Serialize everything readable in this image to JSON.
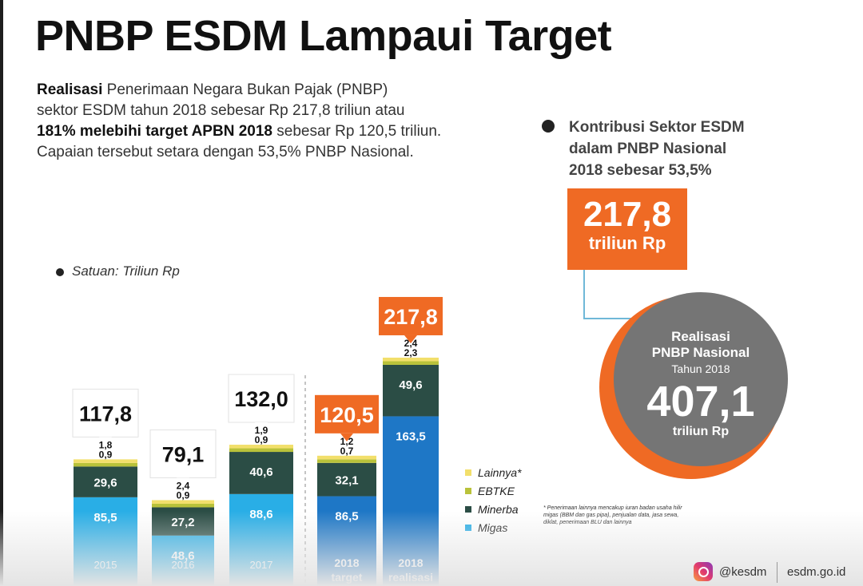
{
  "title": "PNBP ESDM Lampaui Target",
  "intro": {
    "line1_bold": "Realisasi",
    "line1_rest": " Penerimaan Negara Bukan Pajak (PNBP)",
    "line2": "sektor ESDM tahun 2018 sebesar Rp 217,8 triliun atau",
    "line3_bold": "181% melebihi target APBN 2018",
    "line3_rest": " sebesar Rp 120,5 triliun.",
    "line4": "Capaian tersebut setara dengan 53,5% PNBP Nasional."
  },
  "unit_note": "Satuan: Triliun Rp",
  "contribution": {
    "line1": "Kontribusi Sektor ESDM",
    "line2": "dalam PNBP Nasional",
    "line3": "2018 sebesar 53,5%",
    "value": "217,8",
    "unit": "triliun Rp"
  },
  "national": {
    "line1": "Realisasi",
    "line2": "PNBP Nasional",
    "line3": "Tahun 2018",
    "value": "407,1",
    "unit": "triliun Rp"
  },
  "footnote": "Penerimaan lainnya mencakup iuran badan usaha hilir migas (BBM dan gas pipa), penjualan data, jasa sewa, diklat, penerimaan BLU dan lainnya",
  "footer": {
    "handle": "@kesdm",
    "site": "esdm.go.id"
  },
  "colors": {
    "migas": "#29aee6",
    "minerba": "#2b4d45",
    "ebtke": "#b9c23a",
    "lainnya": "#f2df6b",
    "accent": "#ef6a24",
    "target_blue": "#1e77c6",
    "circle_gray": "#757575"
  },
  "chart_data": {
    "type": "bar",
    "stacked": true,
    "unit": "Triliun Rp",
    "categories": [
      "2015",
      "2016",
      "2017",
      "2018 target",
      "2018 realisasi"
    ],
    "category_labels": [
      [
        "2015"
      ],
      [
        "2016"
      ],
      [
        "2017"
      ],
      [
        "2018",
        "target"
      ],
      [
        "2018",
        "realisasi"
      ]
    ],
    "series": [
      {
        "name": "Migas",
        "values": [
          85.5,
          48.6,
          88.6,
          86.5,
          163.5
        ]
      },
      {
        "name": "Minerba",
        "values": [
          29.6,
          27.2,
          40.6,
          32.1,
          49.6
        ]
      },
      {
        "name": "EBTKE",
        "values": [
          0.9,
          0.9,
          0.9,
          0.7,
          2.3
        ]
      },
      {
        "name": "Lainnya*",
        "values": [
          1.8,
          2.4,
          1.9,
          1.2,
          2.4
        ]
      }
    ],
    "value_labels": [
      [
        "85,5",
        "48,6",
        "88,6",
        "86,5",
        "163,5"
      ],
      [
        "29,6",
        "27,2",
        "40,6",
        "32,1",
        "49,6"
      ],
      [
        "0,9",
        "0,9",
        "0,9",
        "0,7",
        "2,3"
      ],
      [
        "1,8",
        "2,4",
        "1,9",
        "1,2",
        "2,4"
      ]
    ],
    "totals": [
      "117,8",
      "79,1",
      "132,0",
      "120,5",
      "217,8"
    ],
    "total_values": [
      117.8,
      79.1,
      132.0,
      120.5,
      217.8
    ],
    "highlight": [
      false,
      false,
      false,
      true,
      true
    ],
    "legend": [
      "Lainnya*",
      "EBTKE",
      "Minerba",
      "Migas"
    ],
    "legend_position": "right",
    "grid": false
  }
}
